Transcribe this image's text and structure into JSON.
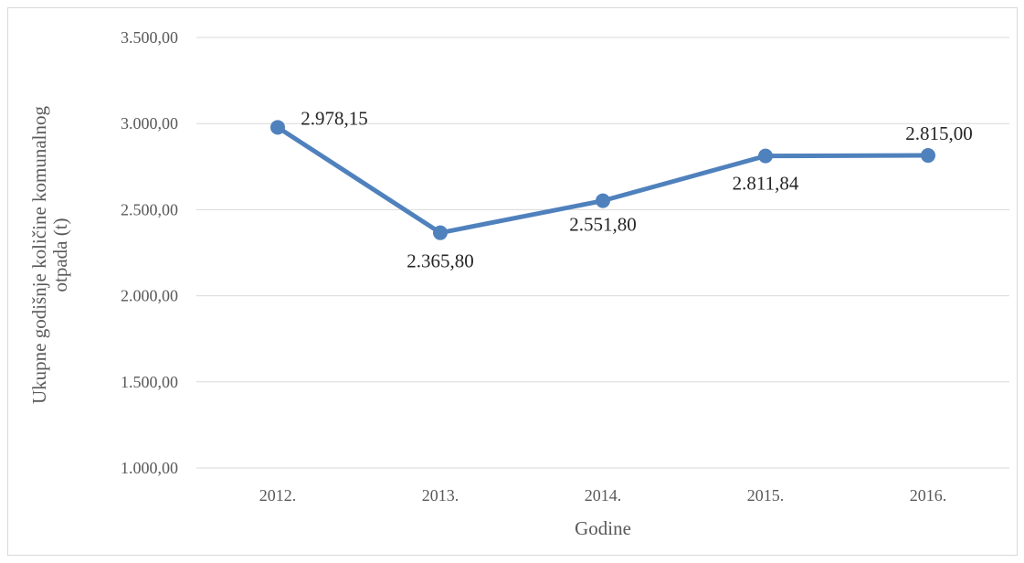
{
  "chart_data": {
    "type": "line",
    "categories": [
      "2012.",
      "2013.",
      "2014.",
      "2015.",
      "2016."
    ],
    "series": [
      {
        "values": [
          2978.15,
          2365.8,
          2551.8,
          2811.84,
          2815.0
        ],
        "data_labels": [
          "2.978,15",
          "2.365,80",
          "2.551,80",
          "2.811,84",
          "2.815,00"
        ],
        "color": "#4f81bd"
      }
    ],
    "ylim": [
      1000,
      3500
    ],
    "yticks": [
      1000,
      1500,
      2000,
      2500,
      3000,
      3500
    ],
    "ytick_labels": [
      "1.000,00",
      "1.500,00",
      "2.000,00",
      "2.500,00",
      "3.000,00",
      "3.500,00"
    ],
    "xlabel": "Godine",
    "ylabel_lines": [
      "Ukupne godišnje količine komunalnog",
      "otpada (t)"
    ],
    "grid": true,
    "legend": "none"
  }
}
